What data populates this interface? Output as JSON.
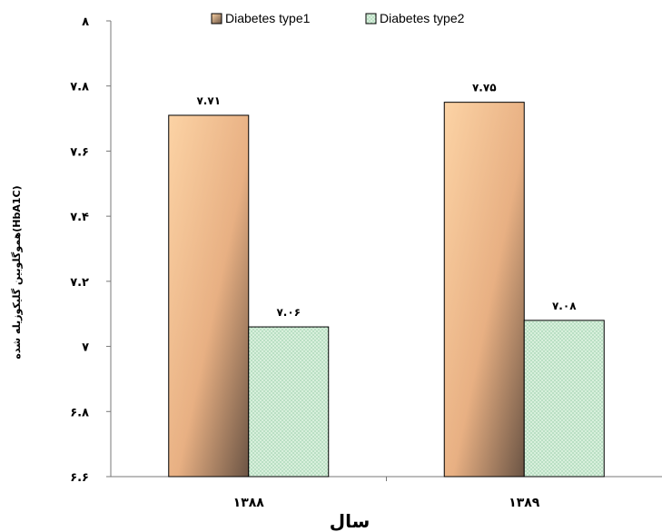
{
  "chart_data": {
    "type": "bar",
    "title": "",
    "xlabel": "سال",
    "ylabel": "(HbA1C)هموگلوبین گلیکوزیله شده",
    "categories": [
      "۱۳۸۸",
      "۱۳۸۹"
    ],
    "series": [
      {
        "name": "Diabetes type1",
        "values": [
          7.71,
          7.75
        ],
        "labels": [
          "۷.۷۱",
          "۷.۷۵"
        ],
        "color": "#f6c08a"
      },
      {
        "name": "Diabetes type2",
        "values": [
          7.06,
          7.08
        ],
        "labels": [
          "۷.۰۶",
          "۷.۰۸"
        ],
        "color": "#cdebd0"
      }
    ],
    "ylim": [
      6.6,
      8
    ],
    "yticks": [
      6.6,
      6.8,
      7,
      7.2,
      7.4,
      7.6,
      7.8,
      8
    ],
    "ytick_labels": [
      "۶.۶",
      "۶.۸",
      "۷",
      "۷.۲",
      "۷.۴",
      "۷.۶",
      "۷.۸",
      "۸"
    ],
    "grid": false,
    "legend_position": "top"
  }
}
